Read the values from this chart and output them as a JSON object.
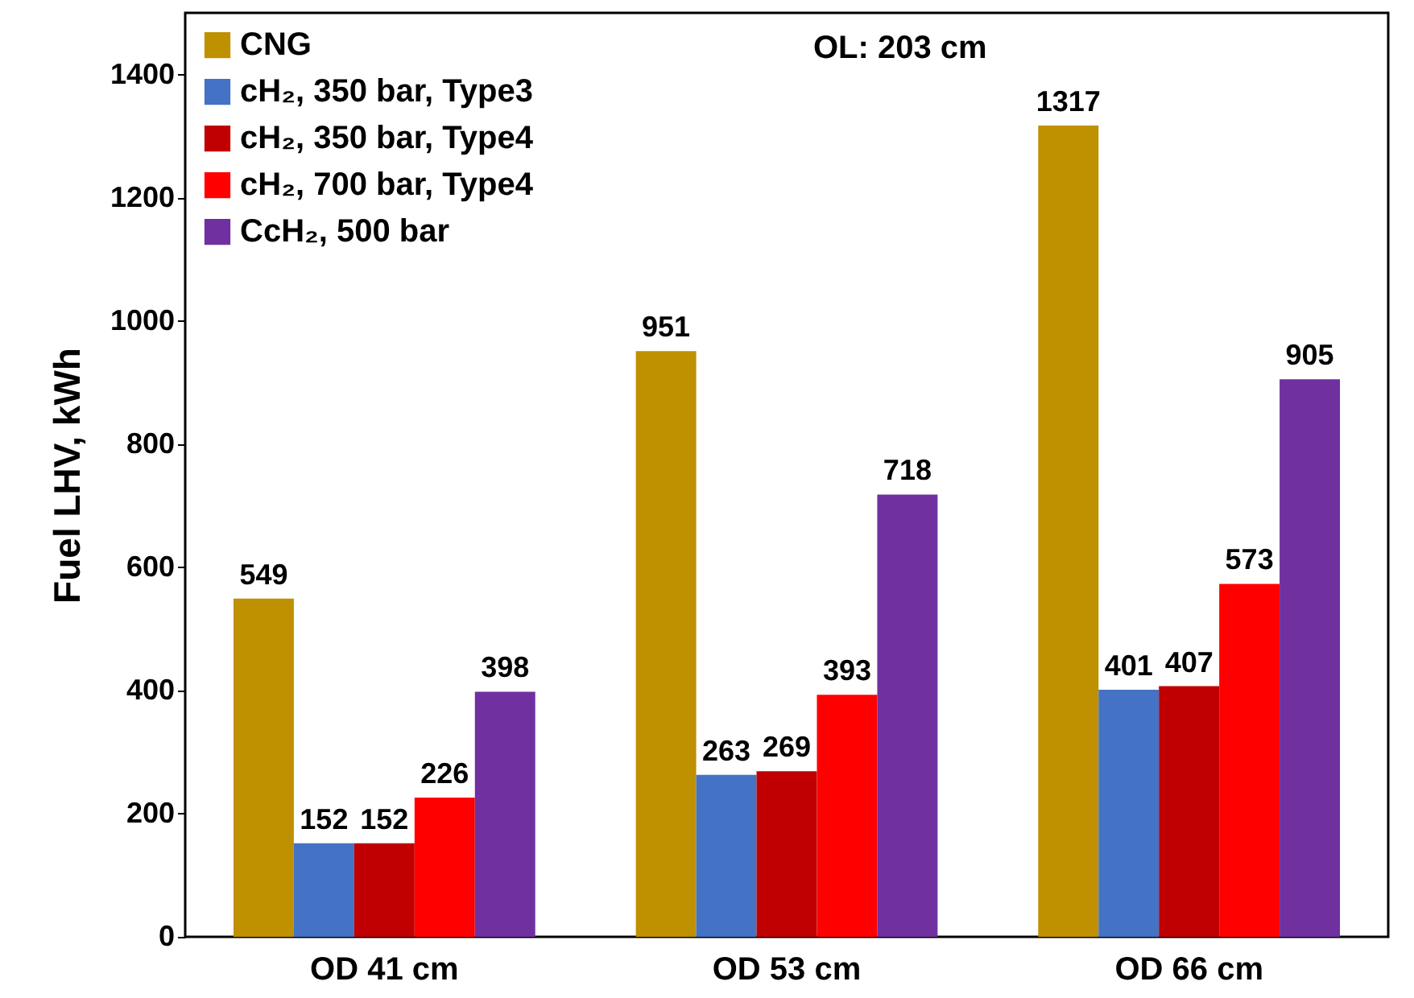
{
  "chart_data": {
    "type": "bar",
    "ylabel": "Fuel LHV, kWh",
    "categories": [
      "OD 41 cm",
      "OD 53 cm",
      "OD 66 cm"
    ],
    "series": [
      {
        "name": "CNG",
        "color": "#bf9000",
        "values": [
          549,
          951,
          1317
        ]
      },
      {
        "name": "cH₂, 350 bar, Type3",
        "color": "#4472c4",
        "values": [
          152,
          263,
          401
        ]
      },
      {
        "name": "cH₂, 350 bar, Type4",
        "color": "#c00000",
        "values": [
          152,
          269,
          407
        ]
      },
      {
        "name": "cH₂, 700 bar, Type4",
        "color": "#ff0000",
        "values": [
          226,
          393,
          573
        ]
      },
      {
        "name": "CcH₂, 500 bar",
        "color": "#7030a0",
        "values": [
          398,
          718,
          905
        ]
      }
    ],
    "ylim": [
      0,
      1500
    ],
    "yticks": [
      0,
      200,
      400,
      600,
      800,
      1000,
      1200,
      1400
    ],
    "data_labels": true,
    "legend": "top left",
    "grid": false,
    "annotations": [
      "OL: 203 cm"
    ]
  }
}
